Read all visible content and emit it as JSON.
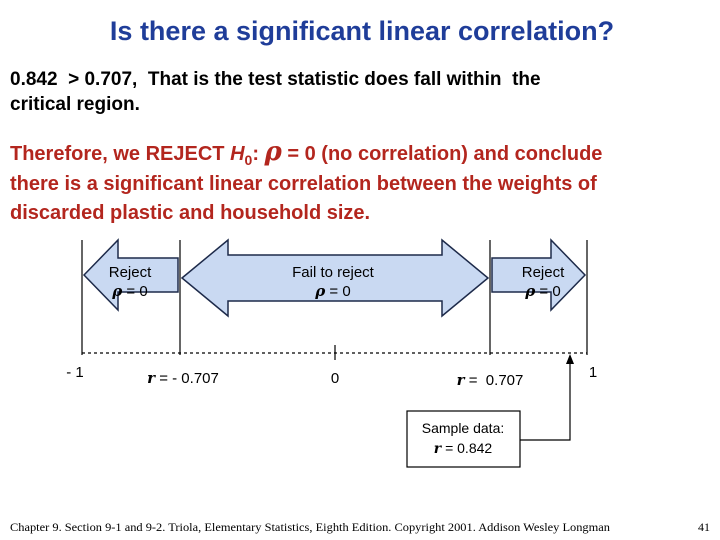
{
  "title": "Is there a significant linear correlation?",
  "statement": {
    "lines": [
      "0.842  > 0.707,  That is the test statistic does fall within  the",
      "critical region."
    ]
  },
  "conclusion": {
    "line1": [
      "Therefore, we REJECT ",
      "H",
      "0",
      ": ",
      "ρ",
      " = 0 (no correlation) and conclude"
    ],
    "line2": "there is a significant linear correlation between the weights of",
    "line3": "discarded plastic and household size."
  },
  "diagram": {
    "regions": [
      {
        "label": "Reject",
        "hypothesis": [
          "ρ",
          " = 0"
        ]
      },
      {
        "label": "Fail to reject",
        "hypothesis": [
          "ρ",
          " = 0"
        ]
      },
      {
        "label": "Reject",
        "hypothesis": [
          "ρ",
          " = 0"
        ]
      }
    ],
    "axis_labels": [
      "- 1",
      {
        "var": "r",
        "text": " = - 0.707"
      },
      "0",
      {
        "var": "r",
        "text": " =  0.707"
      },
      "1"
    ],
    "sample": {
      "heading": "Sample data:",
      "var": "r",
      "text": " = 0.842"
    }
  },
  "footer": {
    "citation": "Chapter 9. Section 9-1 and 9-2. Triola, Elementary Statistics, Eighth Edition. Copyright 2001. Addison Wesley Longman",
    "page": "41"
  }
}
